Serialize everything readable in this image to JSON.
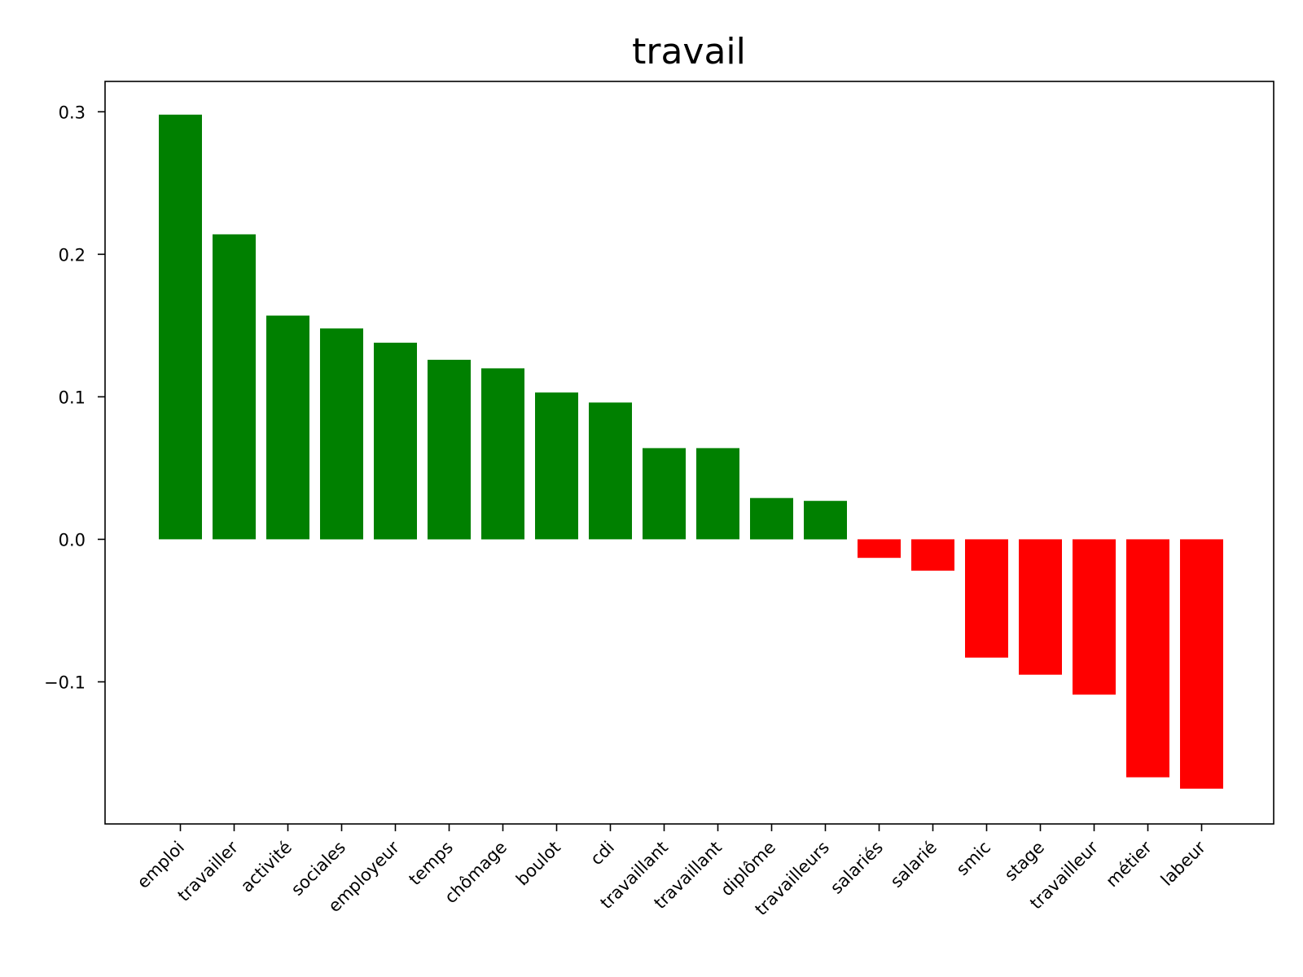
{
  "chart_data": {
    "type": "bar",
    "title": "travail",
    "xlabel": "",
    "ylabel": "",
    "ylim": [
      -0.1997,
      0.3213
    ],
    "yticks": [
      -0.1,
      0.0,
      0.1,
      0.2,
      0.3
    ],
    "ytick_labels": [
      "−0.1",
      "0.0",
      "0.1",
      "0.2",
      "0.3"
    ],
    "grid": false,
    "categories": [
      "emploi",
      "travailler",
      "activité",
      "sociales",
      "employeur",
      "temps",
      "chômage",
      "boulot",
      "cdi",
      "travaillant",
      "travaillant",
      "diplôme",
      "travailleurs",
      "salariés",
      "salarié",
      "smic",
      "stage",
      "travailleur",
      "métier",
      "labeur"
    ],
    "values": [
      0.298,
      0.214,
      0.157,
      0.148,
      0.138,
      0.126,
      0.12,
      0.103,
      0.096,
      0.064,
      0.064,
      0.029,
      0.027,
      -0.013,
      -0.022,
      -0.083,
      -0.095,
      -0.109,
      -0.167,
      -0.175
    ],
    "colors": {
      "positive": "#008000",
      "negative": "#ff0000"
    }
  }
}
